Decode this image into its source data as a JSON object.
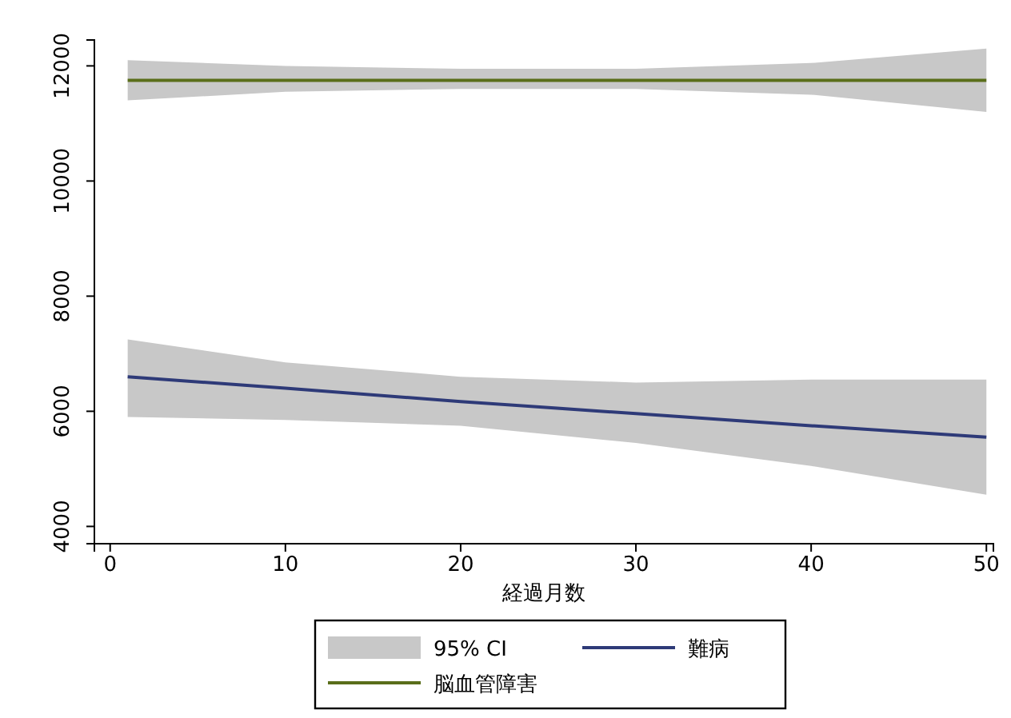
{
  "chart_data": {
    "type": "line",
    "xlabel": "経過月数",
    "x": [
      1,
      10,
      20,
      30,
      40,
      50
    ],
    "series": [
      {
        "name": "難病",
        "color": "#2e3a78",
        "values": [
          6600,
          6400,
          6170,
          5960,
          5750,
          5550
        ],
        "lower": [
          5900,
          5850,
          5750,
          5450,
          5050,
          4550
        ],
        "upper": [
          7250,
          6850,
          6600,
          6500,
          6550,
          6550
        ]
      },
      {
        "name": "脳血管障害",
        "color": "#5a6e1a",
        "values": [
          11750,
          11750,
          11750,
          11750,
          11750,
          11750
        ],
        "lower": [
          11400,
          11550,
          11600,
          11600,
          11500,
          11200
        ],
        "upper": [
          12100,
          12000,
          11950,
          11950,
          12050,
          12300
        ]
      }
    ],
    "xlim": [
      -0.9,
      50.4
    ],
    "ylim": [
      3700,
      12450
    ],
    "xticks": [
      0,
      10,
      20,
      30,
      40,
      50
    ],
    "yticks": [
      4000,
      6000,
      8000,
      10000,
      12000
    ],
    "legend": "bottom",
    "annotations": [
      "95% CI"
    ],
    "marker": "none",
    "line_style": "solid"
  }
}
